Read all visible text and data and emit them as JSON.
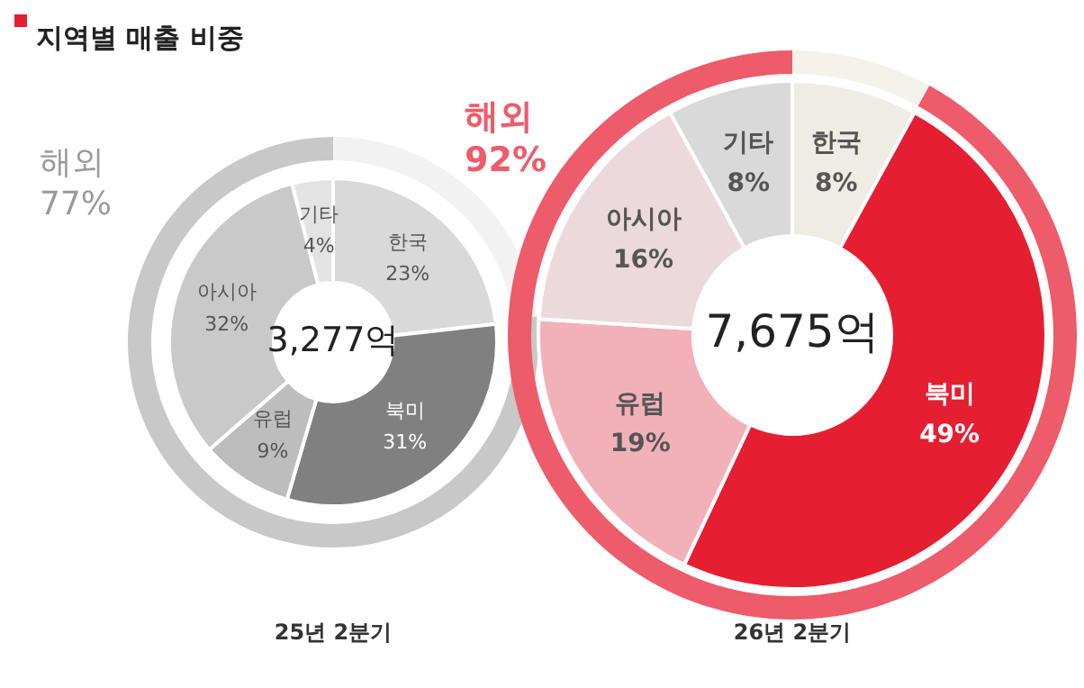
{
  "chart_data": [
    {
      "type": "donut",
      "title": "지역별 매출 비중",
      "categories": [
        null,
        "해외"
      ],
      "values": [
        23,
        77
      ],
      "colors": [
        "#f2f2f2",
        "#c8c8c8"
      ],
      "value_labels": [
        null,
        "77%"
      ]
    },
    {
      "type": "donut",
      "xlabel": "25년 2분기",
      "annotations": [
        "3,277억"
      ],
      "categories": [
        "한국",
        "북미",
        "유럽",
        "아시아",
        "기타"
      ],
      "values": [
        23,
        31,
        9,
        32,
        4
      ],
      "colors": [
        "#d9d9d9",
        "#808080",
        "#bdbdbd",
        "#c9c9c9",
        "#e3e3e3"
      ],
      "value_labels": [
        "23%",
        "31%",
        "9%",
        "32%",
        "4%"
      ]
    },
    {
      "type": "donut",
      "categories": [
        null,
        "해외"
      ],
      "values": [
        8,
        92
      ],
      "colors": [
        "#f4f2eb",
        "#ee5b6a"
      ],
      "value_labels": [
        null,
        "92%"
      ]
    },
    {
      "type": "donut",
      "xlabel": "26년 2분기",
      "annotations": [
        "7,675억"
      ],
      "categories": [
        "한국",
        "북미",
        "유럽",
        "아시아",
        "기타"
      ],
      "values": [
        8,
        49,
        19,
        16,
        8
      ],
      "colors": [
        "#efece3",
        "#e61e32",
        "#f2b1b9",
        "#ecd9dc",
        "#d9d9d9"
      ],
      "value_labels": [
        "8%",
        "49%",
        "19%",
        "16%",
        "8%"
      ]
    }
  ]
}
